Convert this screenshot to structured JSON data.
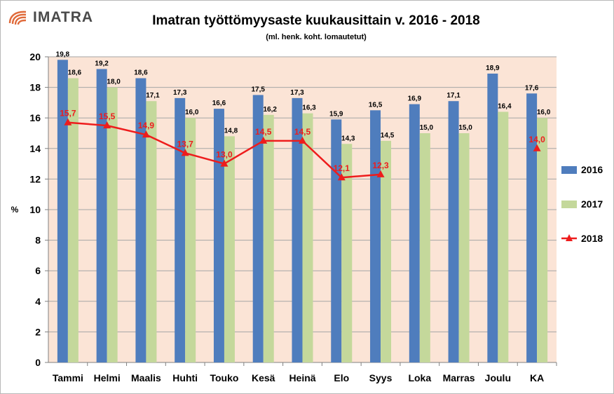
{
  "header": {
    "logo_text": "IMATRA",
    "title": "Imatran työttömyysaste kuukausittain v.  2016 - 2018",
    "subtitle": "(ml. henk. koht. lomautetut)"
  },
  "colors": {
    "s2016": "#4f7dbd",
    "s2017": "#c4d89b",
    "s2018": "#ee1c1c",
    "plot_bg": "#fbe4d6",
    "logo": "#e06a3a"
  },
  "chart_data": {
    "type": "bar",
    "title": "Imatran työttömyysaste kuukausittain v.  2016 - 2018",
    "subtitle": "(ml. henk. koht. lomautetut)",
    "ylabel": "%",
    "xlabel": "",
    "ylim": [
      0,
      20
    ],
    "yticks": [
      0,
      2,
      4,
      6,
      8,
      10,
      12,
      14,
      16,
      18,
      20
    ],
    "grid": true,
    "legend": "right",
    "categories": [
      "Tammi",
      "Helmi",
      "Maalis",
      "Huhti",
      "Touko",
      "Kesä",
      "Heinä",
      "Elo",
      "Syys",
      "Loka",
      "Marras",
      "Joulu",
      "KA"
    ],
    "series": [
      {
        "name": "2016",
        "type": "bar",
        "values": [
          19.8,
          19.2,
          18.6,
          17.3,
          16.6,
          17.5,
          17.3,
          15.9,
          16.5,
          16.9,
          17.1,
          18.9,
          17.6
        ],
        "labels": [
          "19,8",
          "19,2",
          "18,6",
          "17,3",
          "16,6",
          "17,5",
          "17,3",
          "15,9",
          "16,5",
          "16,9",
          "17,1",
          "18,9",
          "17,6"
        ]
      },
      {
        "name": "2017",
        "type": "bar",
        "values": [
          18.6,
          18.0,
          17.1,
          16.0,
          14.8,
          16.2,
          16.3,
          14.3,
          14.5,
          15.0,
          15.0,
          16.4,
          16.0
        ],
        "labels": [
          "18,6",
          "18,0",
          "17,1",
          "16,0",
          "14,8",
          "16,2",
          "16,3",
          "14,3",
          "14,5",
          "15,0",
          "15,0",
          "16,4",
          "16,0"
        ]
      },
      {
        "name": "2018",
        "type": "line",
        "values": [
          15.7,
          15.5,
          14.9,
          13.7,
          13.0,
          14.5,
          14.5,
          12.1,
          12.3,
          null,
          null,
          null,
          14.0
        ],
        "labels": [
          "15,7",
          "15,5",
          "14,9",
          "13,7",
          "13,0",
          "14,5",
          "14,5",
          "12,1",
          "12,3",
          null,
          null,
          null,
          "14,0"
        ]
      }
    ]
  }
}
